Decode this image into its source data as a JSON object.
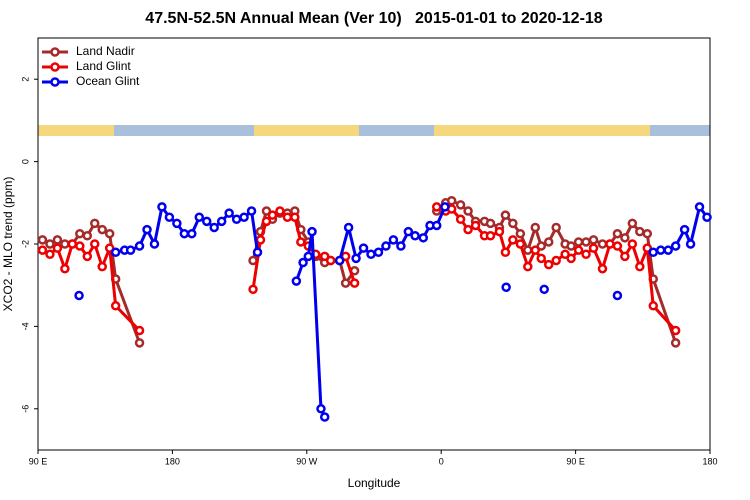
{
  "chart_data": {
    "type": "line",
    "title": "47.5N-52.5N Annual Mean (Ver 10)   2015-01-01 to 2020-12-18",
    "x_label": "Longitude",
    "y_label": "XCO2 - MLO trend (ppm)",
    "xlim": [
      90,
      540
    ],
    "ylim": [
      -7,
      3
    ],
    "xticks": [
      {
        "value": 90,
        "label": "90 E"
      },
      180,
      {
        "value": 270,
        "label": "90 W"
      },
      {
        "value": 360,
        "label": "0"
      },
      {
        "value": 450,
        "label": "90 E"
      },
      {
        "value": 540,
        "label": "180"
      }
    ],
    "yticks": [
      2,
      0,
      -2,
      -4,
      -6
    ],
    "legend": "top-left",
    "series": [
      {
        "name": "Land Nadir",
        "color": "#a52a2a",
        "x": [
          93,
          98,
          103,
          108,
          113,
          118,
          123,
          128,
          133,
          138,
          142,
          158,
          null,
          234,
          239,
          243,
          247,
          252,
          257,
          262,
          266,
          271,
          276,
          282,
          286,
          292,
          296,
          302,
          null,
          357,
          363,
          367,
          373,
          378,
          383,
          389,
          393,
          399,
          403,
          408,
          413,
          418,
          423,
          427,
          432,
          437,
          443,
          447,
          452,
          457,
          462,
          468,
          473,
          478,
          483,
          488,
          493,
          498,
          502,
          517
        ],
        "values": [
          -1.9,
          -2.0,
          -1.9,
          -2.0,
          -2.0,
          -1.75,
          -1.8,
          -1.5,
          -1.65,
          -1.75,
          -2.85,
          -4.4,
          null,
          -2.4,
          -1.7,
          -1.2,
          -1.4,
          -1.25,
          -1.25,
          -1.2,
          -1.65,
          -1.95,
          -2.3,
          -2.45,
          -2.4,
          -2.4,
          -2.95,
          -2.65,
          null,
          -1.2,
          -1.0,
          -0.95,
          -1.05,
          -1.2,
          -1.45,
          -1.45,
          -1.5,
          -1.6,
          -1.3,
          -1.5,
          -1.75,
          -2.15,
          -1.6,
          -2.05,
          -1.95,
          -1.6,
          -2.0,
          -2.05,
          -1.95,
          -1.95,
          -1.9,
          -2.0,
          -2.0,
          -1.75,
          -1.85,
          -1.5,
          -1.7,
          -1.75,
          -2.85,
          -4.4
        ]
      },
      {
        "name": "Land Glint",
        "color": "#ee0000",
        "x": [
          93,
          98,
          103,
          108,
          113,
          118,
          123,
          128,
          133,
          138,
          142,
          158,
          null,
          234,
          239,
          243,
          247,
          252,
          257,
          262,
          266,
          271,
          276,
          282,
          286,
          292,
          296,
          302,
          null,
          357,
          363,
          367,
          373,
          378,
          383,
          389,
          393,
          399,
          403,
          408,
          413,
          418,
          423,
          427,
          432,
          437,
          443,
          447,
          452,
          457,
          462,
          468,
          473,
          478,
          483,
          488,
          493,
          498,
          502,
          517
        ],
        "values": [
          -2.15,
          -2.25,
          -2.1,
          -2.6,
          -2.0,
          -2.05,
          -2.3,
          -2.0,
          -2.55,
          -2.1,
          -3.5,
          -4.1,
          null,
          -3.1,
          -1.9,
          -1.45,
          -1.3,
          -1.2,
          -1.35,
          -1.35,
          -1.95,
          -2.05,
          -2.25,
          -2.3,
          -2.4,
          -2.4,
          -2.3,
          -2.95,
          null,
          -1.1,
          -1.2,
          -1.15,
          -1.4,
          -1.65,
          -1.55,
          -1.8,
          -1.8,
          -1.7,
          -2.2,
          -1.9,
          -2.0,
          -2.55,
          -2.15,
          -2.35,
          -2.5,
          -2.4,
          -2.25,
          -2.35,
          -2.15,
          -2.25,
          -2.1,
          -2.6,
          -2.0,
          -2.05,
          -2.3,
          -2.0,
          -2.55,
          -2.1,
          -3.5,
          -4.1
        ]
      },
      {
        "name": "Ocean Glint",
        "color": "#0000ee",
        "x": [
          117.5,
          null,
          142,
          148,
          152,
          158,
          163,
          168,
          173,
          178,
          183,
          188,
          193,
          198,
          203,
          208,
          213,
          218,
          223,
          228,
          233,
          237,
          null,
          263,
          267.5,
          271,
          273.5,
          279.5,
          282,
          null,
          292,
          298,
          303,
          308,
          313,
          318,
          323,
          328,
          333,
          338,
          342.5,
          348,
          352.5,
          357,
          362.5,
          null,
          403.5,
          null,
          429,
          null,
          478,
          null,
          502,
          507,
          512,
          517,
          523,
          527,
          533,
          538
        ],
        "values": [
          -3.25,
          null,
          -2.2,
          -2.15,
          -2.15,
          -2.05,
          -1.65,
          -2.0,
          -1.1,
          -1.35,
          -1.5,
          -1.75,
          -1.75,
          -1.35,
          -1.45,
          -1.6,
          -1.45,
          -1.25,
          -1.4,
          -1.35,
          -1.2,
          -2.2,
          null,
          -2.9,
          -2.45,
          -2.3,
          -1.7,
          -6.0,
          -6.2,
          null,
          -2.4,
          -1.6,
          -2.35,
          -2.1,
          -2.25,
          -2.2,
          -2.05,
          -1.9,
          -2.05,
          -1.7,
          -1.8,
          -1.85,
          -1.55,
          -1.55,
          -1.1,
          null,
          -3.05,
          null,
          -3.1,
          null,
          -3.25,
          null,
          -2.2,
          -2.15,
          -2.15,
          -2.05,
          -1.65,
          -2.0,
          -1.1,
          -1.35
        ]
      }
    ]
  }
}
